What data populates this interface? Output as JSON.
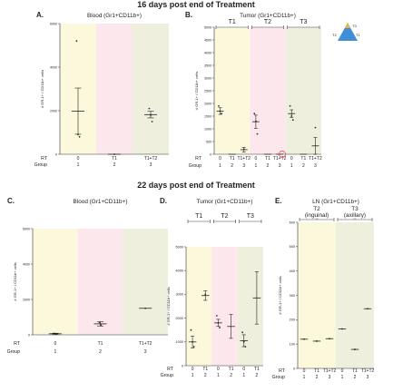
{
  "headings": [
    "16 days post end of Treatment",
    "22 days post end of Treatment"
  ],
  "ylabel": "# GR-1+ / CD11b+ cells",
  "row_labels": {
    "rt": "RT",
    "group": "Group"
  },
  "colors": {
    "yellow": "#fbf8dc",
    "pink": "#fbe7ec",
    "olive": "#eeefdc",
    "point": "#333333",
    "tumor_icon": "#3f8fd8",
    "tumor_tip": "#f2b233"
  },
  "tumor_icon": {
    "labels": [
      "T3",
      "T2",
      "T1"
    ]
  },
  "chart_data": [
    {
      "type": "scatter",
      "panel": "A.",
      "title": "Blood (Gr1+CD11b+)",
      "ylim": [
        0,
        6000
      ],
      "yticks": [
        0,
        2000,
        4000,
        6000
      ],
      "bands": [
        "yellow",
        "pink",
        "olive"
      ],
      "rt_row": [
        "0",
        "T1",
        "T1+T2"
      ],
      "group_row": [
        "1",
        "2",
        "3"
      ],
      "groups": [
        {
          "mean": 1980,
          "sem": 1060,
          "points": [
            5200,
            900,
            800
          ]
        },
        {
          "mean": 0,
          "sem": 0,
          "points": [
            0
          ]
        },
        {
          "mean": 1820,
          "sem": 150,
          "points": [
            2100,
            1800,
            1500
          ]
        }
      ]
    },
    {
      "type": "scatter",
      "panel": "B.",
      "title": "Tumor (Gr1+CD11b+)",
      "ylim": [
        0,
        5000
      ],
      "yticks": [
        0,
        500,
        1000,
        1500,
        2000,
        2500,
        3000,
        3500,
        4000,
        4500,
        5000
      ],
      "sections": [
        "T1",
        "T2",
        "T3"
      ],
      "bands": [
        "yellow",
        "pink",
        "olive"
      ],
      "rt_row": [
        "0",
        "T1",
        "T1+T2",
        "0",
        "T1",
        "T1+T2",
        "0",
        "T1",
        "T1+T2"
      ],
      "group_row": [
        "1",
        "2",
        "3",
        "1",
        "2",
        "3",
        "1",
        "2",
        "3"
      ],
      "groups": [
        {
          "mean": 1700,
          "sem": 130,
          "points": [
            1900,
            1700,
            1600
          ]
        },
        {
          "mean": 0,
          "sem": 0,
          "points": []
        },
        {
          "mean": 180,
          "sem": 90,
          "points": [
            200
          ]
        },
        {
          "mean": 1280,
          "sem": 260,
          "points": [
            1600,
            1300,
            800
          ]
        },
        {
          "mean": 0,
          "sem": 0,
          "points": []
        },
        {
          "mean": 0,
          "sem": 0,
          "points": []
        },
        {
          "mean": 1600,
          "sem": 150,
          "points": [
            1900,
            1500,
            1350
          ]
        },
        {
          "mean": 0,
          "sem": 0,
          "points": []
        },
        {
          "mean": 330,
          "sem": 330,
          "points": [
            1050
          ]
        }
      ]
    },
    {
      "type": "scatter",
      "panel": "C.",
      "title": "Blood (Gr1+CD11b+)",
      "ylim": [
        0,
        6000
      ],
      "yticks": [
        0,
        2000,
        4000,
        6000
      ],
      "bands": [
        "yellow",
        "pink",
        "olive"
      ],
      "rt_row": [
        "0",
        "T1",
        "T1+T2"
      ],
      "group_row": [
        "1",
        "2",
        "3"
      ],
      "groups": [
        {
          "mean": 60,
          "sem": 30,
          "points": [
            80,
            40
          ]
        },
        {
          "mean": 620,
          "sem": 120,
          "points": [
            700,
            550
          ]
        },
        {
          "mean": 1500,
          "sem": 0,
          "points": [
            1500
          ]
        }
      ]
    },
    {
      "type": "scatter",
      "panel": "D.",
      "title": "Tumor (Gr1+CD11b+)",
      "ylim": [
        0,
        5000
      ],
      "yticks": [
        0,
        1000,
        2000,
        3000,
        4000,
        5000
      ],
      "sections": [
        "T1",
        "T2",
        "T3"
      ],
      "bands": [
        "yellow",
        "pink",
        "olive"
      ],
      "rt_row": [
        "0",
        "T1",
        "0",
        "T1",
        "0",
        "T1"
      ],
      "group_row": [
        "1",
        "2",
        "1",
        "2",
        "1",
        "2"
      ],
      "groups": [
        {
          "mean": 1000,
          "sem": 250,
          "points": [
            1500,
            1000,
            800
          ]
        },
        {
          "mean": 2950,
          "sem": 200,
          "points": [
            3000
          ]
        },
        {
          "mean": 1800,
          "sem": 150,
          "points": [
            2100,
            1800,
            1600
          ]
        },
        {
          "mean": 1650,
          "sem": 500,
          "points": []
        },
        {
          "mean": 1050,
          "sem": 250,
          "points": [
            1400,
            1000,
            800
          ]
        },
        {
          "mean": 2850,
          "sem": 1100,
          "points": []
        }
      ]
    },
    {
      "type": "scatter",
      "panel": "E.",
      "title": "LN (Gr1+CD11b+)",
      "ylim": [
        0,
        600
      ],
      "yticks": [
        0,
        100,
        200,
        300,
        400,
        500,
        600
      ],
      "sections": [
        "T2 (inguinal)",
        "T3 (axillary)"
      ],
      "bands": [
        "yellow",
        "olive"
      ],
      "rt_row": [
        "0",
        "T1",
        "T1+T2",
        "0",
        "T1",
        "T1+T2"
      ],
      "group_row": [
        "1",
        "2",
        "3",
        "1",
        "2",
        "3"
      ],
      "groups": [
        {
          "mean": 120,
          "sem": 0,
          "points": [
            120
          ]
        },
        {
          "mean": 112,
          "sem": 0,
          "points": [
            112
          ]
        },
        {
          "mean": 122,
          "sem": 0,
          "points": [
            122
          ]
        },
        {
          "mean": 162,
          "sem": 0,
          "points": [
            162
          ]
        },
        {
          "mean": 78,
          "sem": 0,
          "points": [
            78
          ]
        },
        {
          "mean": 245,
          "sem": 0,
          "points": [
            245
          ]
        }
      ]
    }
  ]
}
